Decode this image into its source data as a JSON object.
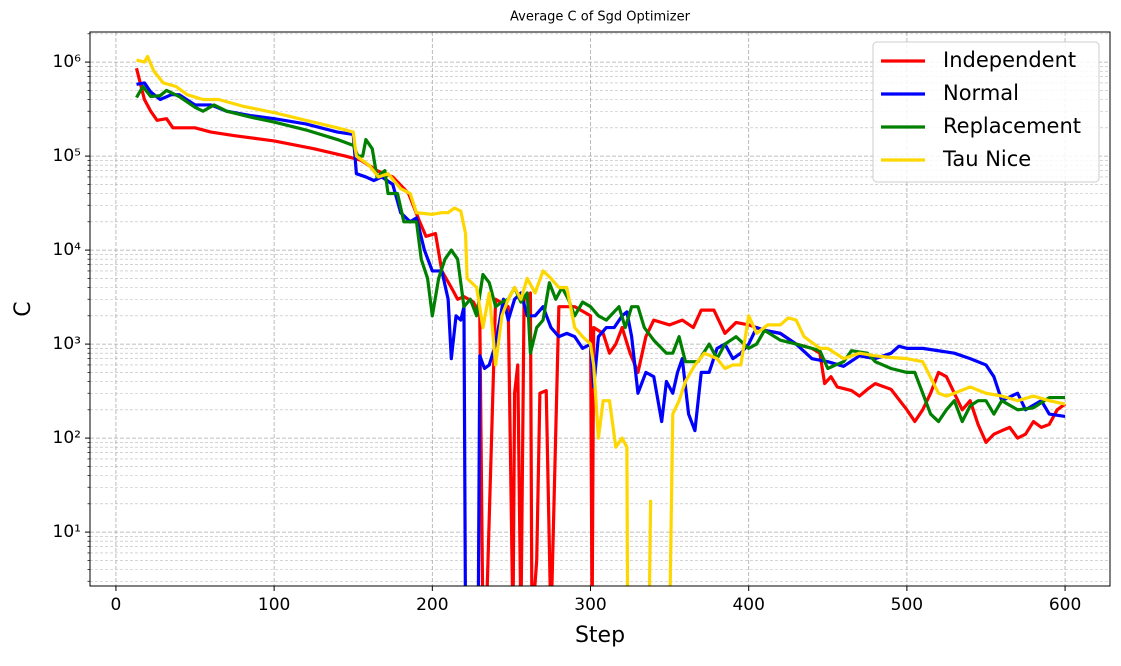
{
  "chart_data": {
    "type": "line",
    "title": "Average C of Sgd Optimizer",
    "xlabel": "Step",
    "ylabel": "C",
    "log_y": true,
    "grid": true,
    "legend_position": "upper right",
    "xlim": [
      -16.4,
      628.4
    ],
    "xticks": [
      0,
      100,
      200,
      300,
      400,
      500,
      600
    ],
    "ylim": [
      2.67,
      2090000
    ],
    "yticks": [
      {
        "value": 10,
        "label": "10¹"
      },
      {
        "value": 100,
        "label": "10²"
      },
      {
        "value": 1000,
        "label": "10³"
      },
      {
        "value": 10000,
        "label": "10⁴"
      },
      {
        "value": 100000,
        "label": "10⁵"
      },
      {
        "value": 1000000,
        "label": "10⁶"
      }
    ],
    "yminorticks": [
      3,
      4,
      5,
      6,
      7,
      8,
      9,
      20,
      30,
      40,
      50,
      60,
      70,
      80,
      90,
      200,
      300,
      400,
      500,
      600,
      700,
      800,
      900,
      2000,
      3000,
      4000,
      5000,
      6000,
      7000,
      8000,
      9000,
      20000,
      30000,
      40000,
      50000,
      60000,
      70000,
      80000,
      90000,
      200000,
      300000,
      400000,
      500000,
      600000,
      700000,
      800000,
      900000,
      2000000
    ],
    "series": [
      {
        "name": "Independent",
        "color": "#ff0000",
        "x": [
          13,
          18,
          22,
          26,
          32,
          36,
          50,
          60,
          75,
          100,
          125,
          145,
          155,
          165,
          175,
          185,
          192,
          196,
          202,
          206,
          212,
          216,
          220,
          226,
          230,
          232,
          234,
          240,
          248,
          251,
          252,
          254,
          256,
          258,
          262,
          263,
          266,
          268,
          272,
          275,
          280,
          290,
          300,
          301,
          302,
          308,
          312,
          316,
          320,
          325,
          330,
          335,
          340,
          350,
          358,
          365,
          370,
          378,
          385,
          392,
          400,
          410,
          420,
          430,
          440,
          445,
          448,
          452,
          456,
          465,
          470,
          475,
          480,
          490,
          500,
          505,
          510,
          515,
          520,
          525,
          530,
          535,
          540,
          545,
          550,
          555,
          560,
          565,
          570,
          575,
          580,
          585,
          590,
          595,
          600
        ],
        "values": [
          860000,
          400000,
          300000,
          240000,
          250000,
          200000,
          200000,
          180000,
          165000,
          145000,
          120000,
          100000,
          90000,
          70000,
          60000,
          40000,
          20000,
          14000,
          15000,
          6000,
          4000,
          3000,
          3200,
          2800,
          2000,
          1,
          1,
          3000,
          2500,
          1,
          300,
          600,
          1,
          3000,
          3500,
          1,
          5,
          300,
          320,
          1,
          2500,
          2500,
          2000,
          1,
          1500,
          1300,
          800,
          1000,
          1500,
          800,
          500,
          1200,
          1800,
          1600,
          1800,
          1500,
          2300,
          2300,
          1300,
          1700,
          1600,
          1400,
          1300,
          1000,
          900,
          800,
          380,
          450,
          350,
          320,
          280,
          330,
          380,
          330,
          200,
          150,
          200,
          300,
          500,
          450,
          300,
          200,
          250,
          140,
          90,
          110,
          120,
          130,
          100,
          110,
          150,
          130,
          140,
          200,
          230
        ]
      },
      {
        "name": "Normal",
        "color": "#0000ff",
        "x": [
          13,
          18,
          22,
          28,
          35,
          40,
          50,
          60,
          70,
          85,
          100,
          120,
          140,
          150,
          152,
          158,
          163,
          168,
          175,
          180,
          186,
          190,
          195,
          200,
          206,
          210,
          212,
          215,
          218,
          220,
          221,
          229,
          230,
          233,
          236,
          240,
          245,
          248,
          252,
          256,
          260,
          265,
          270,
          275,
          280,
          285,
          290,
          295,
          300,
          302,
          305,
          310,
          315,
          320,
          323,
          326,
          330,
          335,
          340,
          345,
          348,
          352,
          355,
          358,
          362,
          366,
          370,
          375,
          380,
          385,
          390,
          395,
          400,
          405,
          410,
          420,
          430,
          440,
          450,
          460,
          470,
          480,
          490,
          495,
          500,
          510,
          520,
          530,
          540,
          550,
          555,
          560,
          570,
          575,
          585,
          590,
          600
        ],
        "values": [
          580000,
          600000,
          480000,
          400000,
          450000,
          450000,
          350000,
          350000,
          300000,
          270000,
          250000,
          220000,
          180000,
          170000,
          65000,
          60000,
          55000,
          60000,
          50000,
          25000,
          20000,
          22000,
          10000,
          6000,
          6000,
          3000,
          700,
          2000,
          1800,
          2500,
          1,
          1,
          750,
          550,
          600,
          1000,
          3000,
          1800,
          3000,
          3500,
          2000,
          2000,
          2500,
          1500,
          1200,
          1300,
          1200,
          900,
          1000,
          350,
          1200,
          1500,
          1500,
          2000,
          2200,
          1200,
          300,
          500,
          450,
          150,
          400,
          300,
          500,
          700,
          180,
          120,
          500,
          500,
          900,
          1000,
          700,
          800,
          1000,
          1500,
          1400,
          1300,
          1000,
          700,
          650,
          580,
          750,
          700,
          800,
          950,
          900,
          900,
          850,
          800,
          700,
          600,
          450,
          250,
          300,
          200,
          250,
          180,
          170
        ]
      },
      {
        "name": "Replacement",
        "color": "#008000",
        "x": [
          13,
          17,
          22,
          28,
          32,
          40,
          50,
          55,
          62,
          70,
          85,
          100,
          120,
          140,
          150,
          153,
          156,
          158,
          162,
          165,
          170,
          172,
          178,
          182,
          186,
          190,
          193,
          197,
          200,
          204,
          208,
          212,
          216,
          220,
          224,
          228,
          232,
          236,
          240,
          244,
          248,
          252,
          256,
          260,
          262,
          266,
          270,
          274,
          278,
          282,
          286,
          290,
          295,
          300,
          305,
          310,
          318,
          322,
          326,
          330,
          334,
          340,
          348,
          352,
          356,
          360,
          368,
          375,
          380,
          385,
          392,
          400,
          405,
          410,
          420,
          430,
          440,
          445,
          450,
          455,
          460,
          465,
          475,
          480,
          490,
          500,
          505,
          510,
          515,
          520,
          525,
          530,
          535,
          540,
          545,
          550,
          555,
          560,
          570,
          580,
          590,
          600
        ],
        "values": [
          420000,
          550000,
          430000,
          440000,
          500000,
          430000,
          330000,
          300000,
          350000,
          300000,
          260000,
          230000,
          190000,
          150000,
          130000,
          100000,
          100000,
          150000,
          120000,
          60000,
          70000,
          40000,
          40000,
          20000,
          20000,
          20000,
          8000,
          5000,
          2000,
          5000,
          8000,
          10000,
          8000,
          2500,
          3000,
          2000,
          5500,
          4500,
          2500,
          2800,
          3000,
          4000,
          2800,
          3500,
          800,
          1500,
          1800,
          4500,
          3000,
          4000,
          3000,
          2000,
          2800,
          2500,
          2000,
          1800,
          2500,
          1500,
          2500,
          2500,
          1500,
          1100,
          800,
          800,
          1200,
          650,
          650,
          1000,
          700,
          1000,
          1200,
          900,
          1000,
          1400,
          1100,
          1000,
          900,
          850,
          550,
          600,
          650,
          850,
          800,
          650,
          550,
          500,
          500,
          300,
          180,
          150,
          200,
          250,
          150,
          220,
          250,
          250,
          180,
          250,
          200,
          210,
          270,
          270
        ]
      },
      {
        "name": "Tau Nice",
        "color": "#ffd700",
        "x": [
          13,
          18,
          20,
          24,
          30,
          38,
          45,
          55,
          65,
          80,
          100,
          120,
          140,
          150,
          152,
          160,
          166,
          172,
          180,
          186,
          190,
          200,
          206,
          210,
          214,
          218,
          221,
          222,
          228,
          232,
          236,
          240,
          244,
          248,
          252,
          256,
          260,
          265,
          270,
          275,
          280,
          285,
          290,
          295,
          300,
          302,
          305,
          308,
          312,
          316,
          320,
          323,
          323.5,
          330,
          337,
          338,
          345,
          350,
          352,
          356,
          360,
          366,
          372,
          380,
          385,
          390,
          395,
          400,
          405,
          412,
          420,
          425,
          430,
          435,
          445,
          450,
          460,
          470,
          480,
          490,
          500,
          510,
          520,
          525,
          530,
          540,
          550,
          560,
          570,
          580,
          590,
          600
        ],
        "values": [
          1050000,
          1000000,
          1150000,
          800000,
          600000,
          550000,
          450000,
          400000,
          400000,
          340000,
          290000,
          240000,
          200000,
          180000,
          100000,
          80000,
          60000,
          65000,
          45000,
          40000,
          25000,
          24000,
          25000,
          25000,
          28000,
          26000,
          15000,
          5000,
          4000,
          1500,
          3500,
          600,
          2000,
          3000,
          4000,
          3000,
          5000,
          3500,
          6000,
          5000,
          4000,
          4000,
          1500,
          1200,
          1000,
          600,
          100,
          250,
          250,
          80,
          100,
          80,
          1,
          null,
          1,
          22,
          null,
          1,
          180,
          250,
          400,
          600,
          800,
          700,
          550,
          600,
          600,
          2000,
          1300,
          1600,
          1600,
          1900,
          1800,
          1200,
          900,
          900,
          700,
          800,
          750,
          720,
          700,
          650,
          300,
          280,
          300,
          350,
          300,
          280,
          250,
          280,
          250,
          230
        ]
      }
    ]
  }
}
